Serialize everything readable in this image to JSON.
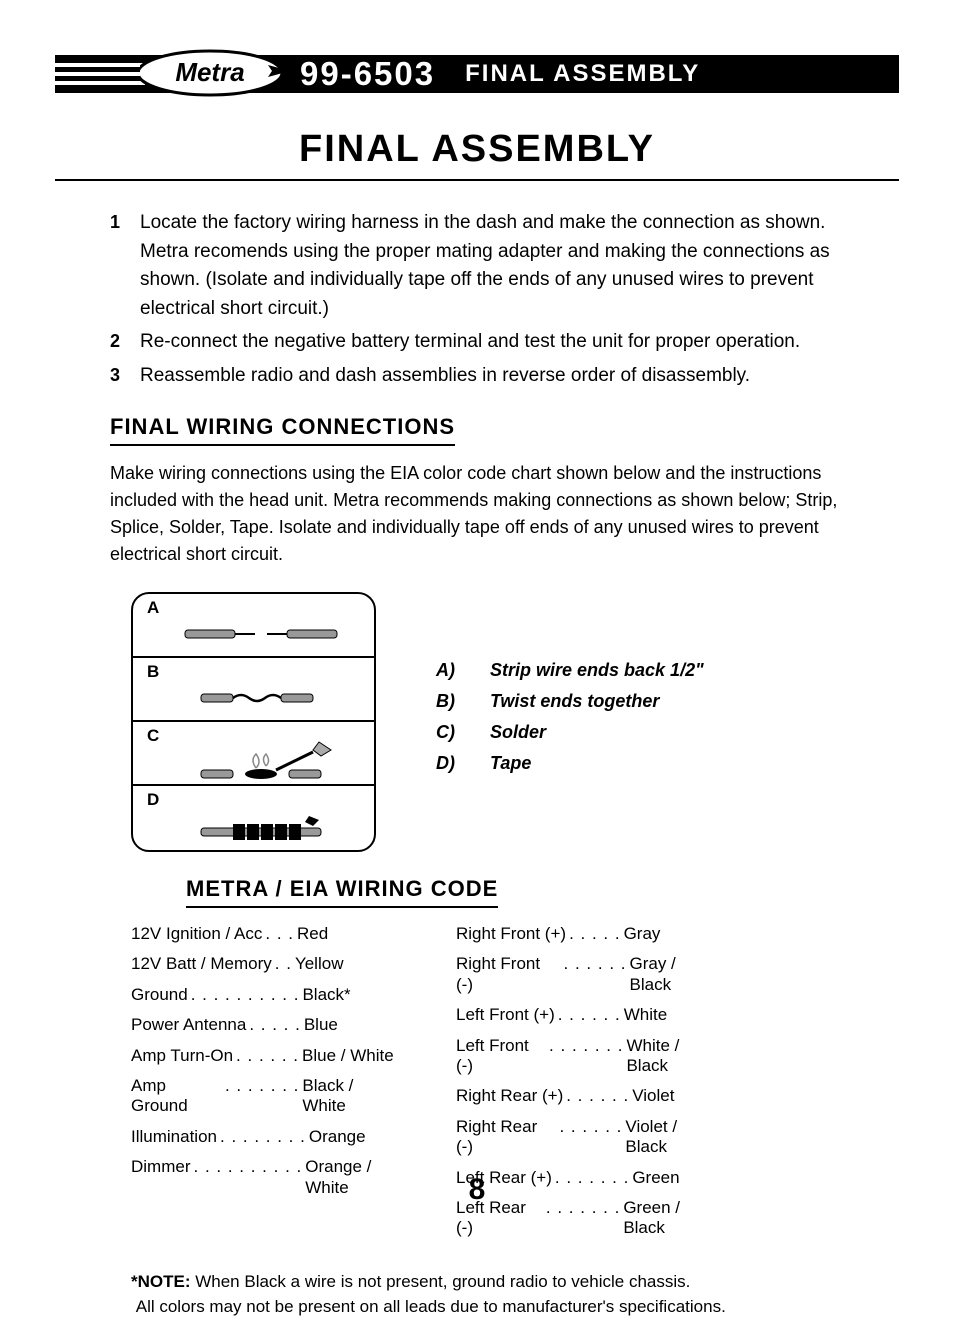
{
  "header": {
    "logo_text": "Metra",
    "part_number": "99-6503",
    "section": "FINAL ASSEMBLY"
  },
  "title": "FINAL ASSEMBLY",
  "steps": [
    {
      "num": "1",
      "text": "Locate the factory wiring harness in the dash and make the connection as shown. Metra recomends using the proper mating adapter and making the connections as shown. (Isolate and individually tape off the ends of any unused wires to prevent electrical short circuit.)"
    },
    {
      "num": "2",
      "text": "Re-connect the negative battery terminal and test the unit for proper operation."
    },
    {
      "num": "3",
      "text": "Reassemble radio and dash assemblies in reverse order of disassembly."
    }
  ],
  "wiring_heading": "FINAL WIRING CONNECTIONS",
  "wiring_intro": "Make wiring connections using the EIA color code chart shown below and the instructions included with the head unit. Metra recommends making connections as shown below; Strip, Splice, Solder, Tape. Isolate and individually tape off ends of any unused wires to prevent electrical short circuit.",
  "diagram": {
    "rows": [
      {
        "label": "A"
      },
      {
        "label": "B"
      },
      {
        "label": "C"
      },
      {
        "label": "D"
      }
    ],
    "legend": [
      {
        "key": "A)",
        "text": "Strip wire ends back 1/2\""
      },
      {
        "key": "B)",
        "text": "Twist ends together"
      },
      {
        "key": "C)",
        "text": "Solder"
      },
      {
        "key": "D)",
        "text": "Tape"
      }
    ]
  },
  "code_heading": "METRA / EIA WIRING CODE",
  "wiring_code": {
    "left": [
      {
        "label": "12V Ignition / Acc",
        "dots": ". . .",
        "color": "Red"
      },
      {
        "label": "12V Batt / Memory",
        "dots": ". .",
        "color": "Yellow"
      },
      {
        "label": "Ground",
        "dots": ". . . . . . . . . .",
        "color": "Black*"
      },
      {
        "label": "Power Antenna",
        "dots": ". . . . .",
        "color": "Blue"
      },
      {
        "label": "Amp Turn-On",
        "dots": " . . . . . .",
        "color": "Blue / White"
      },
      {
        "label": "Amp Ground",
        "dots": ". . . . . . .",
        "color": "Black / White"
      },
      {
        "label": "Illumination",
        "dots": ". . . . . . . .",
        "color": "Orange"
      },
      {
        "label": "Dimmer",
        "dots": " . . . . . . . . . .",
        "color": "Orange / White"
      }
    ],
    "right": [
      {
        "label": "Right Front (+)",
        "dots": " . . . . .",
        "color": "Gray"
      },
      {
        "label": "Right Front (-)",
        "dots": ". . . . . .",
        "color": "Gray / Black"
      },
      {
        "label": "Left Front (+)",
        "dots": " . . . . . .",
        "color": "White"
      },
      {
        "label": "Left Front (-)",
        "dots": ". . . . . . .",
        "color": "White / Black"
      },
      {
        "label": "Right Rear (+)",
        "dots": ". . . . . .",
        "color": "Violet"
      },
      {
        "label": "Right Rear (-)",
        "dots": " . . . . . .",
        "color": "Violet / Black"
      },
      {
        "label": "Left Rear (+)",
        "dots": ". . . . . . .",
        "color": "Green"
      },
      {
        "label": "Left Rear (-)",
        "dots": " . . . . . . .",
        "color": "Green / Black"
      }
    ]
  },
  "note_bold": "*NOTE:",
  "note_line1": " When Black a wire is not present, ground radio to vehicle chassis.",
  "note_line2": "All colors may not be present on all leads due to manufacturer's specifications.",
  "page_number": "8",
  "colors": {
    "bg": "#ffffff",
    "text": "#000000",
    "bar": "#000000"
  }
}
